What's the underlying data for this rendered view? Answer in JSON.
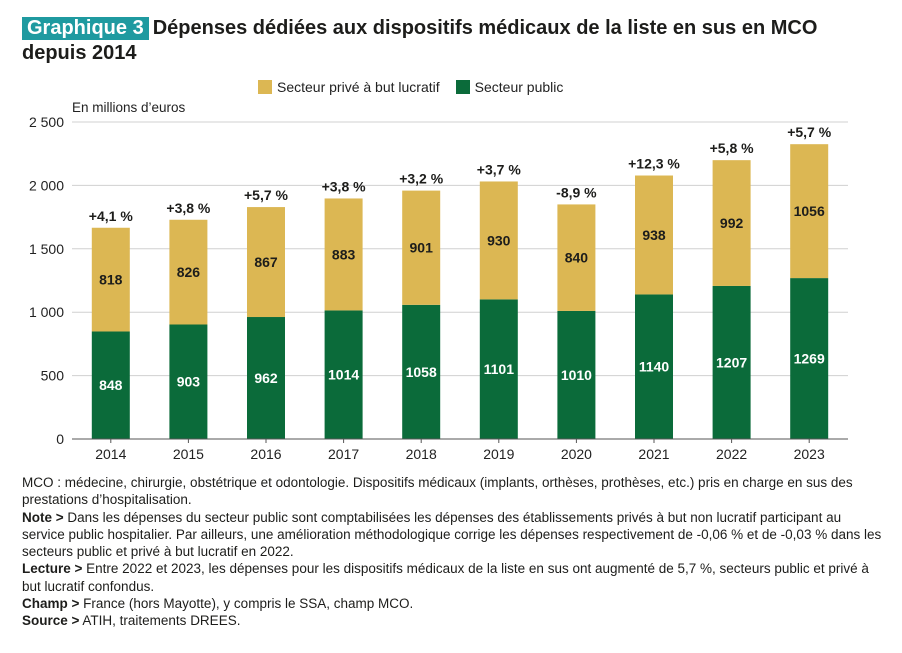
{
  "header": {
    "badge": "Graphique 3",
    "title": "Dépenses dédiées aux dispositifs médicaux de la liste en sus en MCO depuis 2014"
  },
  "legend": {
    "private_label": "Secteur privé à but lucratif",
    "public_label": "Secteur public"
  },
  "colors": {
    "private": "#dcb753",
    "public": "#0b6b3a",
    "grid": "#d0d0d0",
    "badge": "#1f9aa0"
  },
  "chart_data": {
    "type": "bar",
    "stacked": true,
    "unit_label": "En millions d’euros",
    "categories": [
      "2014",
      "2015",
      "2016",
      "2017",
      "2018",
      "2019",
      "2020",
      "2021",
      "2022",
      "2023"
    ],
    "series": [
      {
        "name": "Secteur public",
        "values": [
          848,
          903,
          962,
          1014,
          1058,
          1101,
          1010,
          1140,
          1207,
          1269
        ]
      },
      {
        "name": "Secteur privé à but lucratif",
        "values": [
          818,
          826,
          867,
          883,
          901,
          930,
          840,
          938,
          992,
          1056
        ]
      }
    ],
    "growth_labels": [
      "+4,1 %",
      "+3,8 %",
      "+5,7 %",
      "+3,8 %",
      "+3,2 %",
      "+3,7 %",
      "-8,9 %",
      "+12,3 %",
      "+5,8 %",
      "+5,7 %"
    ],
    "ylim": [
      0,
      2500
    ],
    "yticks": [
      0,
      500,
      1000,
      1500,
      2000,
      2500
    ],
    "ytick_labels": [
      "0",
      "500",
      "1 000",
      "1 500",
      "2 000",
      "2 500"
    ]
  },
  "notes": {
    "definition": "MCO : médecine, chirurgie, obstétrique et odontologie. Dispositifs médicaux (implants, orthèses, prothèses, etc.) pris en charge en sus des prestations d’hospitalisation.",
    "note_label": "Note >",
    "note_text": " Dans les dépenses du secteur public sont comptabilisées les dépenses des établissements privés à but non lucratif participant au service public hospitalier. Par ailleurs, une amélioration méthodologique corrige les dépenses respectivement de -0,06 % et de -0,03 % dans les secteurs public et privé à but lucratif en 2022.",
    "lecture_label": "Lecture >",
    "lecture_text": " Entre 2022 et 2023, les dépenses pour les dispositifs médicaux de la liste en sus ont augmenté de 5,7 %, secteurs public et privé à but lucratif confondus.",
    "champ_label": "Champ >",
    "champ_text": " France (hors Mayotte), y compris le SSA, champ MCO.",
    "source_label": "Source >",
    "source_text": " ATIH, traitements DREES."
  }
}
